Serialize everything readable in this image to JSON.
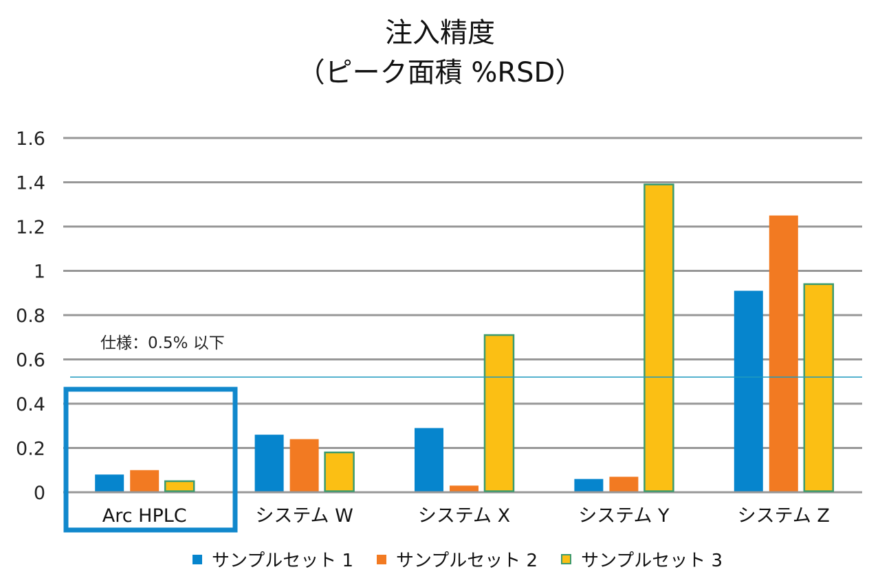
{
  "chart_data": {
    "type": "bar",
    "title": "注入精度",
    "subtitle": "（ピーク面積 %RSD）",
    "xlabel": "",
    "ylabel": "",
    "ylim": [
      0,
      1.6
    ],
    "yticks": [
      "0",
      "0.2",
      "0.4",
      "0.6",
      "0.8",
      "1",
      "1.2",
      "1.4",
      "1.6"
    ],
    "ytick_values": [
      0,
      0.2,
      0.4,
      0.6,
      0.8,
      1.0,
      1.2,
      1.4,
      1.6
    ],
    "grid": true,
    "categories": [
      "Arc HPLC",
      "システム W",
      "システム X",
      "システム Y",
      "システム Z"
    ],
    "series": [
      {
        "name": "サンプルセット 1",
        "color": "#0685CD",
        "values": [
          0.08,
          0.26,
          0.29,
          0.06,
          0.91
        ]
      },
      {
        "name": "サンプルセット 2",
        "color": "#F27A22",
        "values": [
          0.1,
          0.24,
          0.03,
          0.07,
          1.25
        ]
      },
      {
        "name": "サンプルセット 3",
        "color": "#FBBF14",
        "edge": "#3C9A6E",
        "values": [
          0.05,
          0.18,
          0.71,
          1.39,
          0.94
        ]
      }
    ],
    "spec_line": {
      "label": "仕様：0.5% 以下",
      "value": 0.52,
      "color": "#1E9ABF"
    },
    "highlight_category": "Arc HPLC",
    "highlight_color": "#1188CC",
    "legend_position": "bottom"
  }
}
